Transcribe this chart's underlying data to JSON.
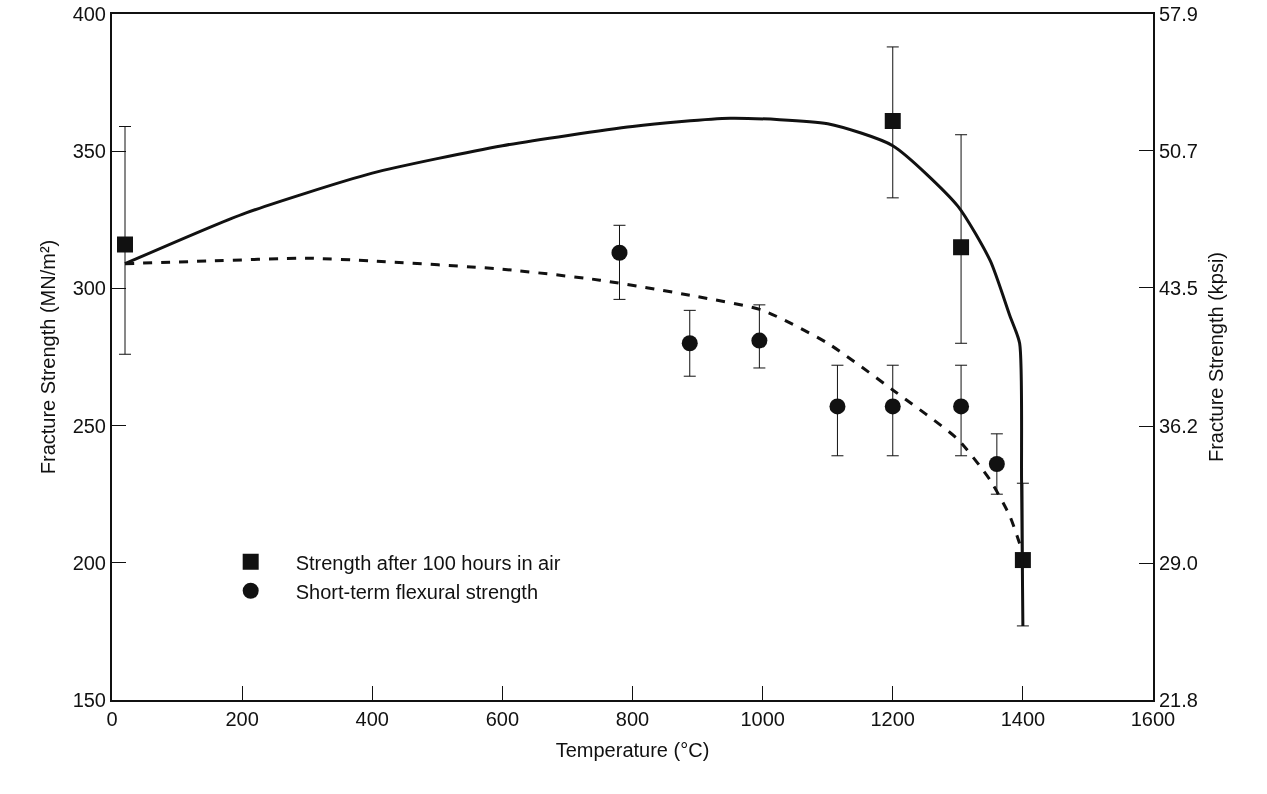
{
  "chart_data": {
    "type": "scatter",
    "xlabel": "Temperature (°C)",
    "ylabel": "Fracture Strength (MN/m²)",
    "y2label": "Fracture Strength (kpsi)",
    "xlim": [
      0,
      1600
    ],
    "xticks": [
      0,
      200,
      400,
      600,
      800,
      1000,
      1200,
      1400,
      1600
    ],
    "ylim": [
      150,
      400
    ],
    "yticks": [
      150,
      200,
      250,
      300,
      350,
      400
    ],
    "y2lim": [
      21.8,
      57.9
    ],
    "y2ticks": [
      {
        "value": 21.8,
        "label": "21.8"
      },
      {
        "value": 29,
        "label": "29.0"
      },
      {
        "value": 36.2,
        "label": "36.2"
      },
      {
        "value": 43.5,
        "label": "43.5"
      },
      {
        "value": 50.7,
        "label": "50.7"
      },
      {
        "value": 57.9,
        "label": "57.9"
      }
    ],
    "grid": false,
    "legend": "bottom left",
    "series": [
      {
        "name": "Strength after 100 hours in air",
        "marker": "square",
        "color": "#111111",
        "x": [
          20,
          1200,
          1305,
          1400
        ],
        "values": [
          316,
          361,
          315,
          201
        ],
        "errors": [
          [
            276,
            359
          ],
          [
            333,
            388
          ],
          [
            280,
            356
          ],
          [
            177,
            229
          ]
        ]
      },
      {
        "name": "Short-term flexural strength",
        "marker": "circle",
        "color": "#111111",
        "x": [
          780,
          888,
          995,
          1115,
          1200,
          1305,
          1360
        ],
        "values": [
          313,
          280,
          281,
          257,
          257,
          257,
          236
        ],
        "errors": [
          [
            296,
            323
          ],
          [
            268,
            292
          ],
          [
            271,
            294
          ],
          [
            239,
            272
          ],
          [
            239,
            272
          ],
          [
            239,
            272
          ],
          [
            225,
            247
          ]
        ]
      },
      {
        "type": "line",
        "line_style": "solid",
        "marker": "none",
        "color": "#111111",
        "x": [
          20,
          200,
          400,
          600,
          800,
          950,
          1100,
          1200,
          1300,
          1350,
          1380,
          1395,
          1398,
          1400
        ],
        "values": [
          309,
          327,
          342,
          352,
          359,
          362,
          360,
          352,
          330,
          310,
          290,
          280,
          230,
          177
        ]
      },
      {
        "type": "line",
        "line_style": "dashed",
        "marker": "none",
        "color": "#111111",
        "x": [
          20,
          150,
          300,
          400,
          600,
          750,
          900,
          1000,
          1100,
          1200,
          1300,
          1350,
          1380,
          1395
        ],
        "values": [
          309,
          310,
          311,
          310,
          307,
          303,
          297,
          292,
          280,
          263,
          245,
          230,
          217,
          207
        ]
      }
    ]
  }
}
